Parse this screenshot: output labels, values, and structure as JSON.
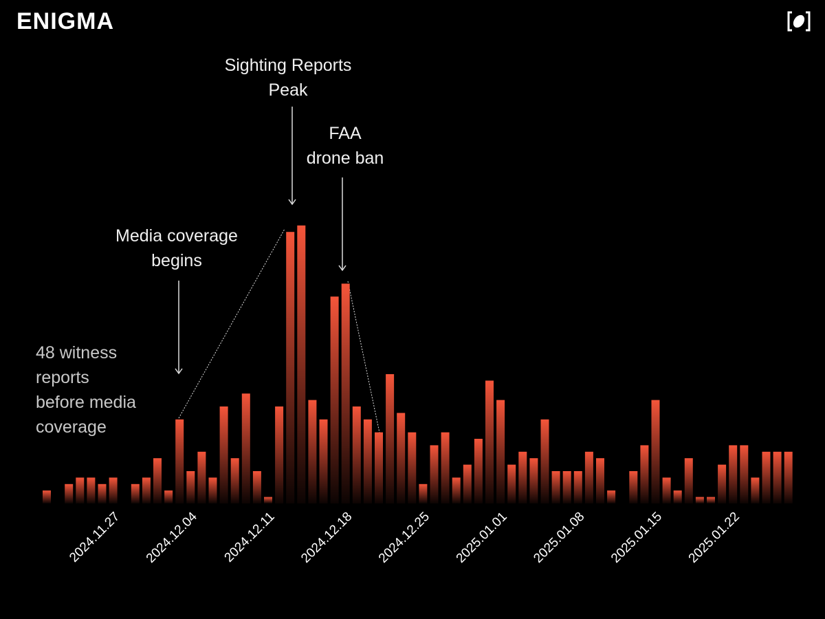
{
  "brand": "ENIGMA",
  "chart_data": {
    "type": "bar",
    "categories": [
      null,
      null,
      null,
      null,
      null,
      null,
      null,
      "2024.11.27",
      null,
      null,
      null,
      null,
      null,
      null,
      "2024.12.04",
      null,
      null,
      null,
      null,
      null,
      null,
      "2024.12.11",
      null,
      null,
      null,
      null,
      null,
      null,
      "2024.12.18",
      null,
      null,
      null,
      null,
      null,
      null,
      "2024.12.25",
      null,
      null,
      null,
      null,
      null,
      null,
      "2025.01.01",
      null,
      null,
      null,
      null,
      null,
      null,
      "2025.01.08",
      null,
      null,
      null,
      null,
      null,
      null,
      "2025.01.15",
      null,
      null,
      null,
      null,
      null,
      null,
      "2025.01.22",
      null,
      null,
      null,
      null
    ],
    "values": [
      2,
      0,
      3,
      4,
      4,
      3,
      4,
      0,
      3,
      4,
      7,
      2,
      13,
      5,
      8,
      4,
      15,
      7,
      17,
      5,
      1,
      15,
      42,
      43,
      16,
      13,
      32,
      34,
      15,
      13,
      11,
      20,
      14,
      11,
      3,
      9,
      11,
      4,
      6,
      10,
      19,
      16,
      6,
      8,
      7,
      13,
      5,
      5,
      5,
      8,
      7,
      2,
      0,
      5,
      9,
      16,
      4,
      2,
      7,
      1,
      1,
      6,
      9,
      9,
      4,
      8,
      8,
      8
    ],
    "color": "#f5553a",
    "ylim": [
      0,
      45
    ],
    "annotations": [
      {
        "text": [
          "Sighting Reports",
          "Peak"
        ]
      },
      {
        "text": [
          "FAA",
          "drone ban"
        ]
      },
      {
        "text": [
          "Media coverage",
          "begins"
        ]
      },
      {
        "text": [
          "48 witness",
          "reports",
          "before media",
          "coverage"
        ]
      }
    ]
  }
}
